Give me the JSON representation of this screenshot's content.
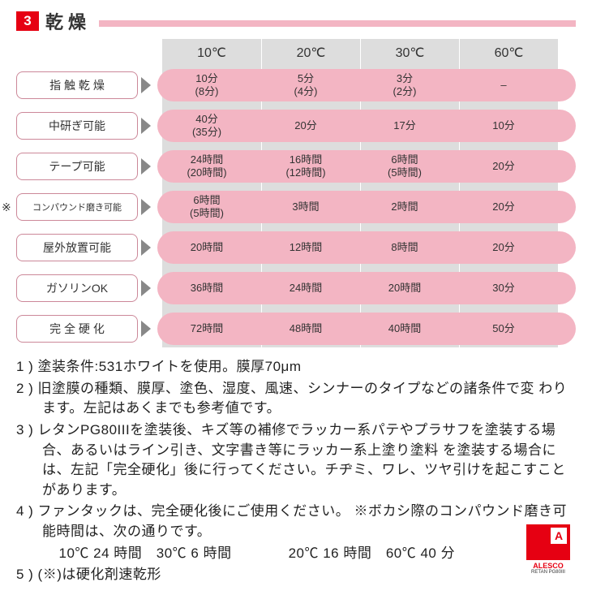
{
  "header": {
    "num": "3",
    "title": "乾燥"
  },
  "colors": {
    "red": "#e60012",
    "pink": "#f3b5c3",
    "grey": "#ddd"
  },
  "temps": [
    "10℃",
    "20℃",
    "30℃",
    "60℃"
  ],
  "rows": [
    {
      "label": "指 触 乾 燥",
      "star": false,
      "cells": [
        [
          "10分",
          "(8分)"
        ],
        [
          "5分",
          "(4分)"
        ],
        [
          "3分",
          "(2分)"
        ],
        [
          "–",
          ""
        ]
      ]
    },
    {
      "label": "中研ぎ可能",
      "star": false,
      "cells": [
        [
          "40分",
          "(35分)"
        ],
        [
          "20分",
          ""
        ],
        [
          "17分",
          ""
        ],
        [
          "10分",
          ""
        ]
      ]
    },
    {
      "label": "テープ可能",
      "star": false,
      "cells": [
        [
          "24時間",
          "(20時間)"
        ],
        [
          "16時間",
          "(12時間)"
        ],
        [
          "6時間",
          "(5時間)"
        ],
        [
          "20分",
          ""
        ]
      ]
    },
    {
      "label": "コンパウンド磨き可能",
      "star": true,
      "cells": [
        [
          "6時間",
          "(5時間)"
        ],
        [
          "3時間",
          ""
        ],
        [
          "2時間",
          ""
        ],
        [
          "20分",
          ""
        ]
      ]
    },
    {
      "label": "屋外放置可能",
      "star": false,
      "cells": [
        [
          "20時間",
          ""
        ],
        [
          "12時間",
          ""
        ],
        [
          "8時間",
          ""
        ],
        [
          "20分",
          ""
        ]
      ]
    },
    {
      "label": "ガソリンOK",
      "star": false,
      "cells": [
        [
          "36時間",
          ""
        ],
        [
          "24時間",
          ""
        ],
        [
          "20時間",
          ""
        ],
        [
          "30分",
          ""
        ]
      ]
    },
    {
      "label": "完 全 硬 化",
      "star": false,
      "cells": [
        [
          "72時間",
          ""
        ],
        [
          "48時間",
          ""
        ],
        [
          "40時間",
          ""
        ],
        [
          "50分",
          ""
        ]
      ]
    }
  ],
  "notes": [
    "1 ) 塗装条件:531ホワイトを使用。膜厚70μm",
    "2 ) 旧塗膜の種類、膜厚、塗色、湿度、風速、シンナーのタイプなどの諸条件で変 わります。左記はあくまでも参考値です。",
    "3 ) レタンPG80IIIを塗装後、キズ等の補修でラッカー系パテやプラサフを塗装する場合、あるいはライン引き、文字書き等にラッカー系上塗り塗料 を塗装する場合には、左記「完全硬化」後に行ってください。チヂミ、ワレ、ツヤ引けを起こすことがあります。",
    "4 ) ファンタックは、完全硬化後にご使用ください。 ※ボカシ際のコンパウンド磨き可能時間は、次の通りです。",
    "　　　10℃ 24 時間　30℃ 6 時間　　　　20℃ 16 時間　60℃ 40 分",
    "5 ) (※)は硬化剤速乾形"
  ],
  "logo": {
    "text": "ALESCO",
    "sub": "RETAN PG80III",
    "mark": "A"
  }
}
